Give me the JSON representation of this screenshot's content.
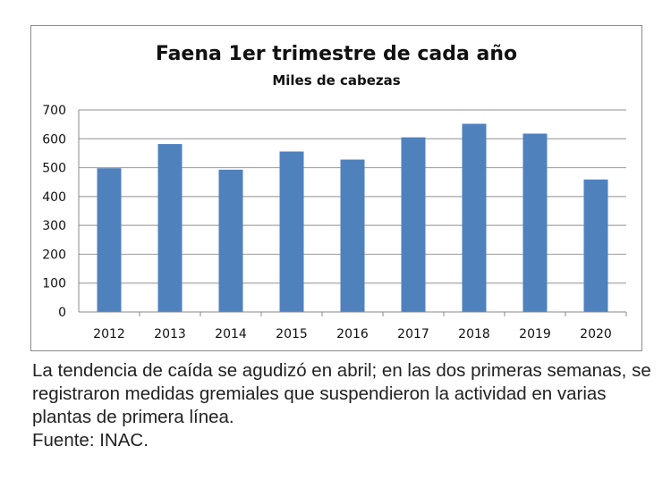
{
  "chart_data": {
    "type": "bar",
    "title": "Faena 1er trimestre de cada año",
    "subtitle": "Miles de cabezas",
    "categories": [
      "2012",
      "2013",
      "2014",
      "2015",
      "2016",
      "2017",
      "2018",
      "2019",
      "2020"
    ],
    "values": [
      498,
      582,
      493,
      556,
      528,
      605,
      652,
      618,
      459
    ],
    "ylim": [
      0,
      700
    ],
    "yticks": [
      0,
      100,
      200,
      300,
      400,
      500,
      600,
      700
    ],
    "grid": true,
    "bar_color": "#4f81bd"
  },
  "caption": {
    "text": "La tendencia de caída se agudizó en abril; en las dos primeras semanas, se registraron medidas gremiales que suspendieron la actividad en varias plantas de primera línea.",
    "source": "Fuente: INAC."
  }
}
